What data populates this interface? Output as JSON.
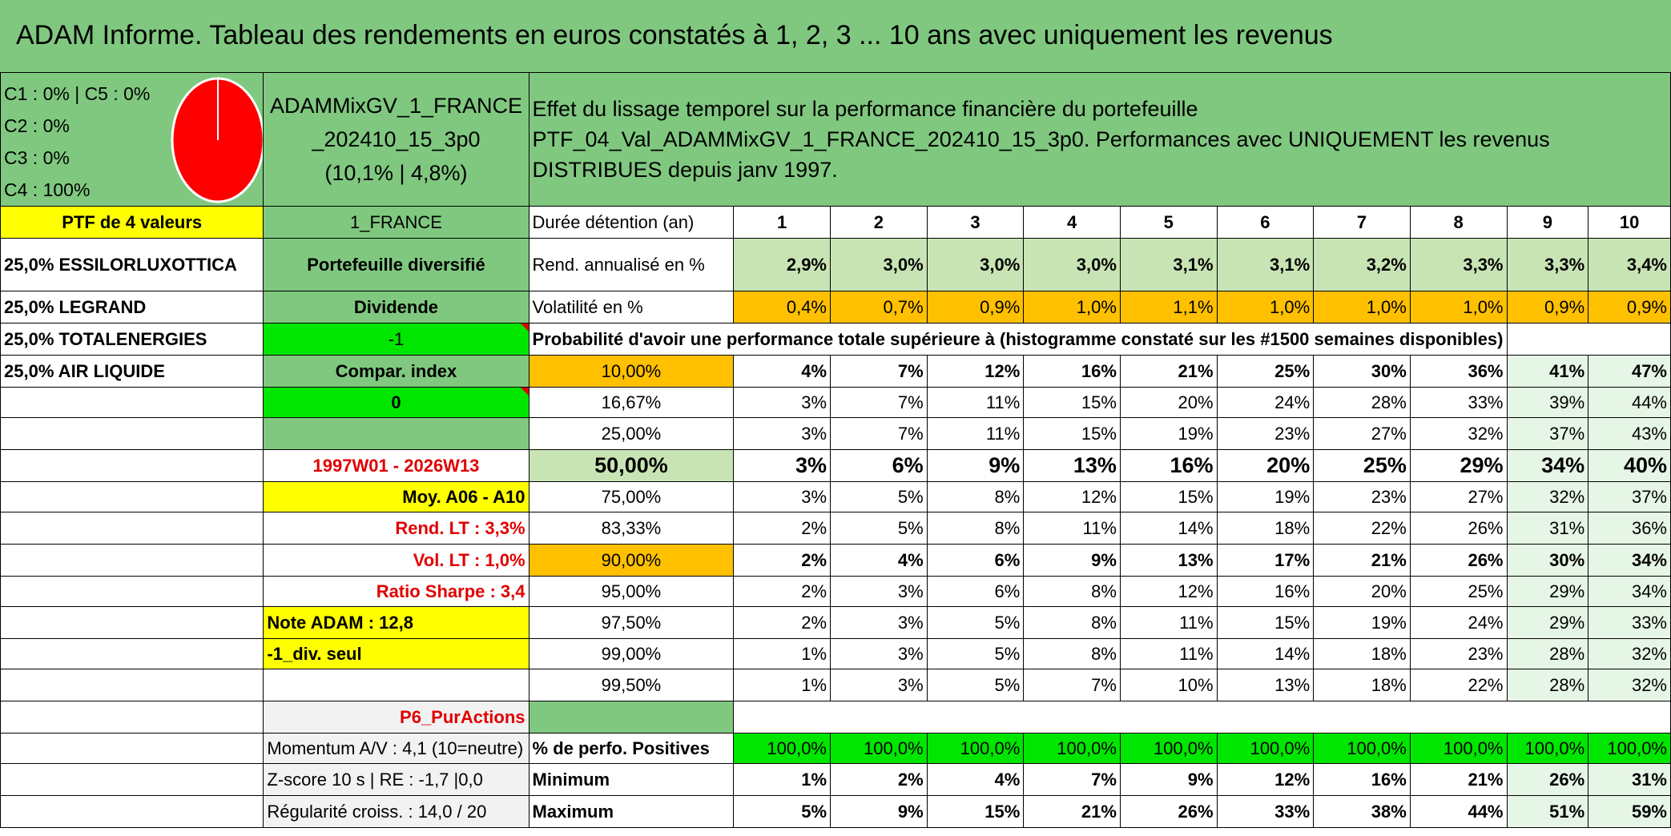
{
  "title": "ADAM Informe. Tableau des rendements en euros constatés à 1, 2, 3 ... 10 ans avec uniquement les revenus",
  "composition": [
    "C1 : 0% | C5 : 0%",
    "C2 : 0%",
    "C3 : 0%",
    "C4 : 100%"
  ],
  "pie": {
    "color": "#ff0000",
    "share_c4": 1.0
  },
  "portfolio_name": "ADAMMixGV_1_FRANCE_202410_15_3p0",
  "portfolio_stats": "(10,1% | 4,8%)",
  "description_line1": "Effet du lissage temporel sur la performance financière du portefeuille",
  "description_line2": "PTF_04_Val_ADAMMixGV_1_FRANCE_202410_15_3p0. Performances avec UNIQUEMENT les revenus DISTRIBUES depuis janv 1997.",
  "left": {
    "ptf_label": "PTF de 4 valeurs",
    "holdings": [
      "25,0% ESSILORLUXOTTICA",
      "25,0% LEGRAND",
      "25,0% TOTALENERGIES",
      "25,0% AIR LIQUIDE"
    ]
  },
  "mid": {
    "region": "1_FRANCE",
    "type": "Portefeuille diversifié",
    "dividende_label": "Dividende",
    "dividende_value": "-1",
    "compar_label": "Compar. index",
    "compar_value": "0",
    "period": "1997W01 - 2026W13",
    "moy": "Moy. A06 - A10",
    "rend_lt": "Rend. LT : 3,3%",
    "vol_lt": "Vol. LT : 1,0%",
    "sharpe": "Ratio Sharpe : 3,4",
    "note": "Note ADAM : 12,8",
    "div_seul": "-1_div. seul",
    "p6": "P6_PurActions",
    "momentum": "Momentum A/V : 4,1 (10=neutre)",
    "zscore": "Z-score 10 s | RE : -1,7 |0,0",
    "regularite": "Régularité croiss. : 14,0 / 20"
  },
  "table": {
    "duree_label": "Durée détention (an)",
    "years": [
      "1",
      "2",
      "3",
      "4",
      "5",
      "6",
      "7",
      "8",
      "9",
      "10"
    ],
    "rend_label": "Rend. annualisé en %",
    "rend": [
      "2,9%",
      "3,0%",
      "3,0%",
      "3,0%",
      "3,1%",
      "3,1%",
      "3,2%",
      "3,3%",
      "3,3%",
      "3,4%"
    ],
    "vol_label": "Volatilité en %",
    "vol": [
      "0,4%",
      "0,7%",
      "0,9%",
      "1,0%",
      "1,1%",
      "1,0%",
      "1,0%",
      "1,0%",
      "0,9%",
      "0,9%"
    ],
    "prob_title": "Probabilité d'avoir une performance totale supérieure à (histogramme constaté sur les #1500 semaines disponibles)",
    "prob_rows": [
      {
        "p": "10,00%",
        "v": [
          "4%",
          "7%",
          "12%",
          "16%",
          "21%",
          "25%",
          "30%",
          "36%",
          "41%",
          "47%"
        ]
      },
      {
        "p": "16,67%",
        "v": [
          "3%",
          "7%",
          "11%",
          "15%",
          "20%",
          "24%",
          "28%",
          "33%",
          "39%",
          "44%"
        ]
      },
      {
        "p": "25,00%",
        "v": [
          "3%",
          "7%",
          "11%",
          "15%",
          "19%",
          "23%",
          "27%",
          "32%",
          "37%",
          "43%"
        ]
      },
      {
        "p": "50,00%",
        "v": [
          "3%",
          "6%",
          "9%",
          "13%",
          "16%",
          "20%",
          "25%",
          "29%",
          "34%",
          "40%"
        ]
      },
      {
        "p": "75,00%",
        "v": [
          "3%",
          "5%",
          "8%",
          "12%",
          "15%",
          "19%",
          "23%",
          "27%",
          "32%",
          "37%"
        ]
      },
      {
        "p": "83,33%",
        "v": [
          "2%",
          "5%",
          "8%",
          "11%",
          "14%",
          "18%",
          "22%",
          "26%",
          "31%",
          "36%"
        ]
      },
      {
        "p": "90,00%",
        "v": [
          "2%",
          "4%",
          "6%",
          "9%",
          "13%",
          "17%",
          "21%",
          "26%",
          "30%",
          "34%"
        ]
      },
      {
        "p": "95,00%",
        "v": [
          "2%",
          "3%",
          "6%",
          "8%",
          "12%",
          "16%",
          "20%",
          "25%",
          "29%",
          "34%"
        ]
      },
      {
        "p": "97,50%",
        "v": [
          "2%",
          "3%",
          "5%",
          "8%",
          "11%",
          "15%",
          "19%",
          "24%",
          "29%",
          "33%"
        ]
      },
      {
        "p": "99,00%",
        "v": [
          "1%",
          "3%",
          "5%",
          "8%",
          "11%",
          "14%",
          "18%",
          "23%",
          "28%",
          "32%"
        ]
      },
      {
        "p": "99,50%",
        "v": [
          "1%",
          "3%",
          "5%",
          "7%",
          "10%",
          "13%",
          "18%",
          "22%",
          "28%",
          "32%"
        ]
      }
    ],
    "pos_label": "% de perfo. Positives",
    "pos": [
      "100,0%",
      "100,0%",
      "100,0%",
      "100,0%",
      "100,0%",
      "100,0%",
      "100,0%",
      "100,0%",
      "100,0%",
      "100,0%"
    ],
    "min_label": "Minimum",
    "min": [
      "1%",
      "2%",
      "4%",
      "7%",
      "9%",
      "12%",
      "16%",
      "21%",
      "26%",
      "31%"
    ],
    "max_label": "Maximum",
    "max": [
      "5%",
      "9%",
      "15%",
      "21%",
      "26%",
      "33%",
      "38%",
      "44%",
      "51%",
      "59%"
    ]
  }
}
